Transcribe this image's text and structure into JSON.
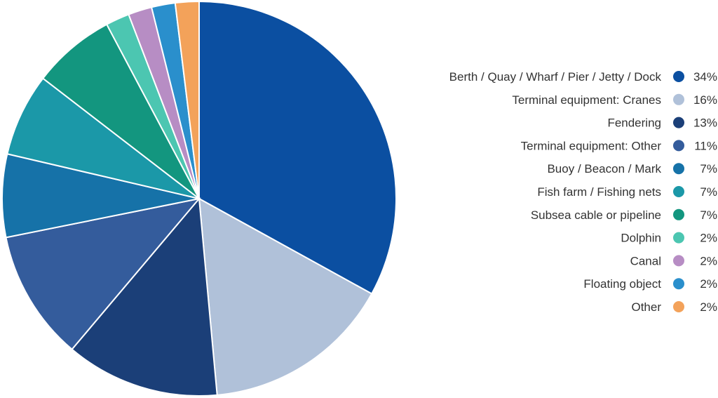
{
  "chart_data": {
    "type": "pie",
    "title": "",
    "legend_position": "right",
    "unit": "%",
    "slices": [
      {
        "label": "Berth / Quay / Wharf / Pier / Jetty / Dock",
        "value": 34,
        "display": "34%",
        "color": "#0b4fa1"
      },
      {
        "label": "Terminal equipment: Cranes",
        "value": 16,
        "display": "16%",
        "color": "#b0c1d9"
      },
      {
        "label": "Fendering",
        "value": 13,
        "display": "13%",
        "color": "#1b3f78"
      },
      {
        "label": "Terminal equipment: Other",
        "value": 11,
        "display": "11%",
        "color": "#345c9c"
      },
      {
        "label": "Buoy / Beacon / Mark",
        "value": 7,
        "display": "7%",
        "color": "#1672a8"
      },
      {
        "label": "Fish farm / Fishing nets",
        "value": 7,
        "display": "7%",
        "color": "#1b98a8"
      },
      {
        "label": "Subsea cable or pipeline",
        "value": 7,
        "display": "7%",
        "color": "#13967f"
      },
      {
        "label": "Dolphin",
        "value": 2,
        "display": "2%",
        "color": "#4cc6b1"
      },
      {
        "label": "Canal",
        "value": 2,
        "display": "2%",
        "color": "#b78dc4"
      },
      {
        "label": "Floating object",
        "value": 2,
        "display": "2%",
        "color": "#2a8fcc"
      },
      {
        "label": "Other",
        "value": 2,
        "display": "2%",
        "color": "#f3a25a"
      }
    ]
  }
}
